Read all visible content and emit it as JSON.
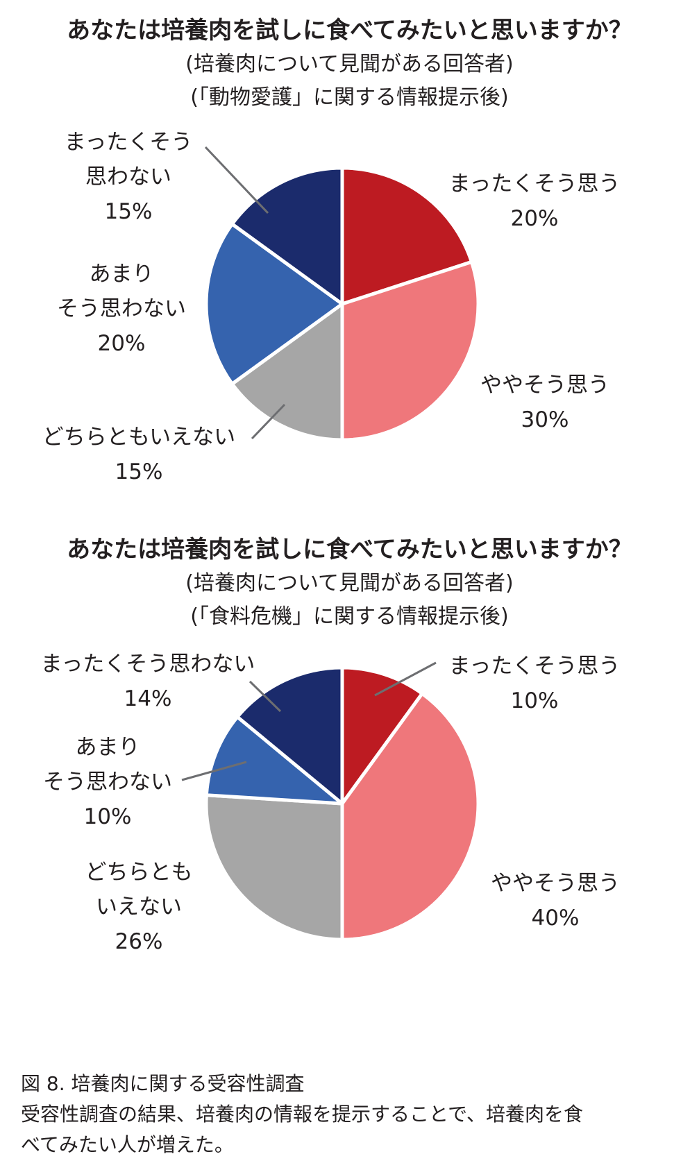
{
  "chart_data": [
    {
      "type": "pie",
      "title": "あなたは培養肉を試しに食べてみたいと思いますか？",
      "subtitle_1": "(培養肉について見聞がある回答者)",
      "subtitle_2": "(「動物愛護」に関する情報提示後)",
      "slices": [
        {
          "label": [
            "まったくそう思う"
          ],
          "pct": "20%",
          "value": 20,
          "color": "#bd1b22"
        },
        {
          "label": [
            "ややそう思う"
          ],
          "pct": "30%",
          "value": 30,
          "color": "#ef777b"
        },
        {
          "label": [
            "どちらともいえない"
          ],
          "pct": "15%",
          "value": 15,
          "color": "#a6a6a6"
        },
        {
          "label": [
            "あまり",
            "そう思わない"
          ],
          "pct": "20%",
          "value": 20,
          "color": "#3563ae"
        },
        {
          "label": [
            "まったくそう",
            "思わない"
          ],
          "pct": "15%",
          "value": 15,
          "color": "#1b2b6c"
        }
      ]
    },
    {
      "type": "pie",
      "title": "あなたは培養肉を試しに食べてみたいと思いますか？",
      "subtitle_1": "(培養肉について見聞がある回答者)",
      "subtitle_2": "(「食料危機」に関する情報提示後)",
      "slices": [
        {
          "label": [
            "まったくそう思う"
          ],
          "pct": "10%",
          "value": 10,
          "color": "#bd1b22"
        },
        {
          "label": [
            "ややそう思う"
          ],
          "pct": "40%",
          "value": 40,
          "color": "#ef777b"
        },
        {
          "label": [
            "どちらとも",
            "いえない"
          ],
          "pct": "26%",
          "value": 26,
          "color": "#a6a6a6"
        },
        {
          "label": [
            "あまり",
            "そう思わない"
          ],
          "pct": "10%",
          "value": 10,
          "color": "#3563ae"
        },
        {
          "label": [
            "まったくそう思わない"
          ],
          "pct": "14%",
          "value": 14,
          "color": "#1b2b6c"
        }
      ]
    }
  ],
  "caption": {
    "line1": "図 8.  培養肉に関する受容性調査",
    "line2": "受容性調査の結果、培養肉の情報を提示することで、培養肉を食",
    "line3": "べてみたい人が増えた。"
  }
}
